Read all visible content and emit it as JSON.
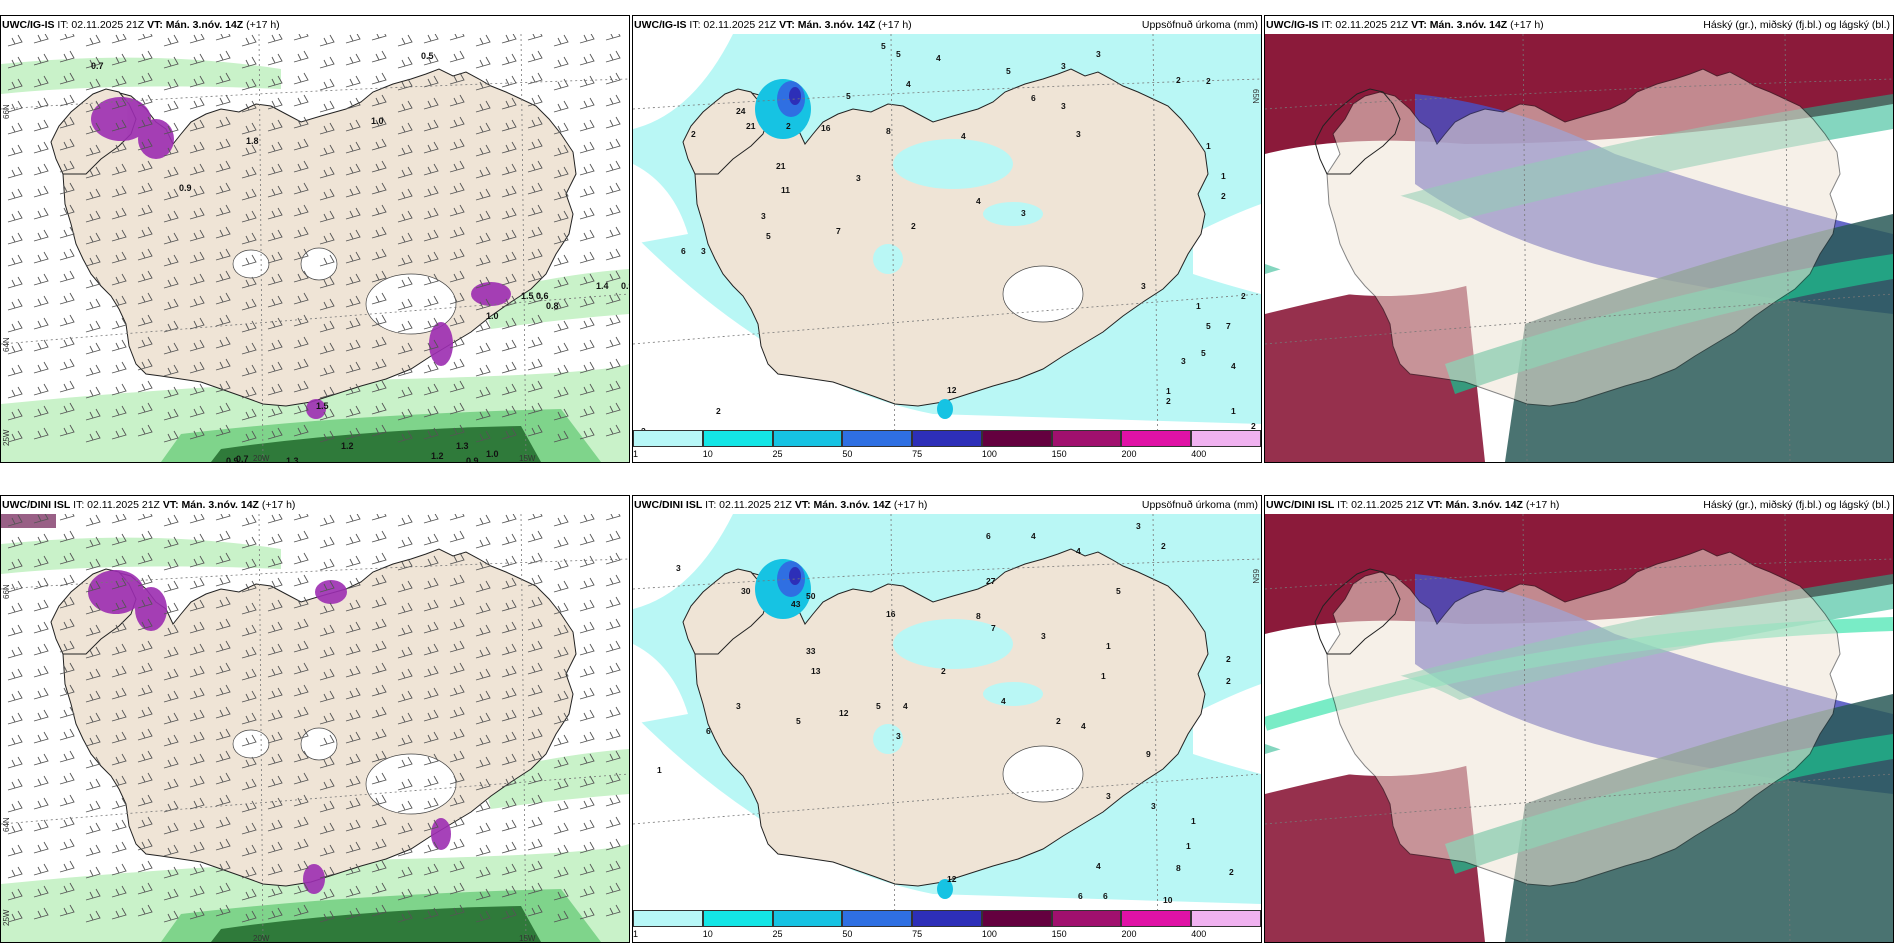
{
  "panels": [
    {
      "id": "r1c1",
      "title_bold": "UWC/IG-IS",
      "it_label": " IT: 02.11.2025 21Z ",
      "vt_label": "VT: Mán. 3.nóv. 14Z",
      "lead": " (+17 h)",
      "right_label": "",
      "type": "wind"
    },
    {
      "id": "r1c2",
      "title_bold": "UWC/IG-IS",
      "it_label": " IT: 02.11.2025 21Z ",
      "vt_label": "VT: Mán. 3.nóv. 14Z",
      "lead": " (+17 h)",
      "right_label": "Uppsöfnuð úrkoma (mm)",
      "type": "precip"
    },
    {
      "id": "r1c3",
      "title_bold": "UWC/IG-IS",
      "it_label": " IT: 02.11.2025 21Z ",
      "vt_label": "VT: Mán. 3.nóv. 14Z",
      "lead": " (+17 h)",
      "right_label": "Háský (gr.), miðský (fj.bl.) og lágský (bl.)",
      "type": "cloud"
    },
    {
      "id": "r2c1",
      "title_bold": "UWC/DINI ISL",
      "it_label": " IT: 02.11.2025 21Z ",
      "vt_label": "VT: Mán. 3.nóv. 14Z",
      "lead": " (+17 h)",
      "right_label": "",
      "type": "wind"
    },
    {
      "id": "r2c2",
      "title_bold": "UWC/DINI ISL",
      "it_label": " IT: 02.11.2025 21Z ",
      "vt_label": "VT: Mán. 3.nóv. 14Z",
      "lead": " (+17 h)",
      "right_label": "Uppsöfnuð úrkoma (mm)",
      "type": "precip"
    },
    {
      "id": "r2c3",
      "title_bold": "UWC/DINI ISL",
      "it_label": " IT: 02.11.2025 21Z ",
      "vt_label": "VT: Mán. 3.nóv. 14Z",
      "lead": " (+17 h)",
      "right_label": "Háský (gr.), miðský (fj.bl.) og lágský (bl.)",
      "type": "cloud"
    }
  ],
  "axis_labels": {
    "lat66": "66N",
    "lat64": "64N",
    "lon25": "25W",
    "lon20": "20W",
    "lon15": "15W"
  },
  "legend": {
    "labels": [
      "1",
      "10",
      "25",
      "50",
      "75",
      "100",
      "150",
      "200",
      "400"
    ],
    "colors": [
      "#b7f7f7",
      "#14e6e6",
      "#16c3e3",
      "#2f6fe2",
      "#2d2fb8",
      "#64003f",
      "#a0106e",
      "#e012a6",
      "#f0b2f0"
    ]
  },
  "colors": {
    "land": "#efe4d6",
    "sea": "#ffffff",
    "precip_light": "#b9f7f5",
    "wind_green_light": "#c9f2c9",
    "wind_green_dark": "#2f7a3a",
    "snow_magenta": "#9c2db1",
    "cloud_high_red": "#8b1a3a",
    "cloud_mid_blue": "#4b4fc0",
    "cloud_low_green": "#1fb58a",
    "cloud_dark_teal": "#2a5b58"
  },
  "annotations": {
    "r1c1": [
      [
        "0.7",
        90,
        50
      ],
      [
        "0.5",
        420,
        40
      ],
      [
        "1.8",
        245,
        125
      ],
      [
        "1.0",
        370,
        105
      ],
      [
        "0.9",
        178,
        172
      ],
      [
        "1.5",
        520,
        280
      ],
      [
        "0.6",
        535,
        280
      ],
      [
        "0.8",
        545,
        290
      ],
      [
        "1.0",
        485,
        300
      ],
      [
        "0.9",
        620,
        270
      ],
      [
        "1.4",
        595,
        270
      ],
      [
        "1.5",
        315,
        390
      ],
      [
        "0.9",
        225,
        445
      ],
      [
        "0.7",
        235,
        443
      ],
      [
        "1.3",
        285,
        445
      ],
      [
        "1.2",
        340,
        430
      ],
      [
        "1.2",
        430,
        440
      ],
      [
        "1.3",
        455,
        430
      ],
      [
        "0.9",
        465,
        445
      ],
      [
        "1.0",
        485,
        438
      ],
      [
        "1.3",
        425,
        452
      ]
    ],
    "r1c2": [
      [
        "5",
        880,
        40
      ],
      [
        "5",
        895,
        48
      ],
      [
        "4",
        935,
        52
      ],
      [
        "5",
        1005,
        65
      ],
      [
        "3",
        1060,
        60
      ],
      [
        "3",
        1095,
        48
      ],
      [
        "2",
        1175,
        74
      ],
      [
        "2",
        1205,
        75
      ],
      [
        "5",
        845,
        90
      ],
      [
        "4",
        905,
        78
      ],
      [
        "2",
        690,
        128
      ],
      [
        "2",
        785,
        120
      ],
      [
        "8",
        885,
        125
      ],
      [
        "6",
        1030,
        92
      ],
      [
        "3",
        1060,
        100
      ],
      [
        "3",
        1075,
        128
      ],
      [
        "4",
        960,
        130
      ],
      [
        "1",
        1205,
        140
      ],
      [
        "16",
        820,
        122
      ],
      [
        "21",
        745,
        120
      ],
      [
        "24",
        735,
        105
      ],
      [
        "21",
        775,
        160
      ],
      [
        "11",
        780,
        184
      ],
      [
        "3",
        855,
        172
      ],
      [
        "7",
        835,
        225
      ],
      [
        "2",
        910,
        220
      ],
      [
        "3",
        1020,
        207
      ],
      [
        "4",
        975,
        195
      ],
      [
        "6",
        680,
        245
      ],
      [
        "3",
        700,
        245
      ],
      [
        "3",
        760,
        210
      ],
      [
        "5",
        765,
        230
      ],
      [
        "1",
        1220,
        170
      ],
      [
        "2",
        1220,
        190
      ],
      [
        "3",
        1140,
        280
      ],
      [
        "1",
        1195,
        300
      ],
      [
        "2",
        1240,
        290
      ],
      [
        "5",
        1205,
        320
      ],
      [
        "7",
        1225,
        320
      ],
      [
        "3",
        1180,
        355
      ],
      [
        "5",
        1200,
        347
      ],
      [
        "4",
        1230,
        360
      ],
      [
        "2",
        1165,
        395
      ],
      [
        "1",
        1230,
        405
      ],
      [
        "1",
        1165,
        385
      ],
      [
        "2",
        640,
        425
      ],
      [
        "1",
        685,
        430
      ],
      [
        "2",
        715,
        405
      ],
      [
        "12",
        946,
        384
      ],
      [
        "2",
        1250,
        420
      ]
    ],
    "r2c2": [
      [
        "6",
        985,
        530
      ],
      [
        "4",
        1030,
        530
      ],
      [
        "3",
        675,
        562
      ],
      [
        "3",
        1135,
        520
      ],
      [
        "2",
        1160,
        540
      ],
      [
        "4",
        1075,
        545
      ],
      [
        "5",
        1115,
        585
      ],
      [
        "27",
        985,
        575
      ],
      [
        "16",
        885,
        608
      ],
      [
        "8",
        975,
        610
      ],
      [
        "7",
        990,
        622
      ],
      [
        "3",
        1040,
        630
      ],
      [
        "50",
        805,
        590
      ],
      [
        "43",
        790,
        598
      ],
      [
        "30",
        740,
        585
      ],
      [
        "13",
        810,
        665
      ],
      [
        "33",
        805,
        645
      ],
      [
        "2",
        940,
        665
      ],
      [
        "1",
        1105,
        640
      ],
      [
        "1",
        1100,
        670
      ],
      [
        "2",
        1225,
        653
      ],
      [
        "2",
        1225,
        675
      ],
      [
        "5",
        875,
        700
      ],
      [
        "4",
        902,
        700
      ],
      [
        "6",
        705,
        725
      ],
      [
        "3",
        735,
        700
      ],
      [
        "5",
        795,
        715
      ],
      [
        "12",
        838,
        707
      ],
      [
        "4",
        1000,
        695
      ],
      [
        "3",
        895,
        730
      ],
      [
        "1",
        656,
        764
      ],
      [
        "2",
        1055,
        715
      ],
      [
        "4",
        1080,
        720
      ],
      [
        "9",
        1145,
        748
      ],
      [
        "3",
        1105,
        790
      ],
      [
        "3",
        1150,
        800
      ],
      [
        "1",
        1190,
        815
      ],
      [
        "1",
        1185,
        840
      ],
      [
        "4",
        1095,
        860
      ],
      [
        "8",
        1175,
        862
      ],
      [
        "6",
        1077,
        890
      ],
      [
        "6",
        1102,
        890
      ],
      [
        "10",
        1162,
        894
      ],
      [
        "12",
        946,
        873
      ],
      [
        "2",
        1228,
        866
      ]
    ]
  }
}
